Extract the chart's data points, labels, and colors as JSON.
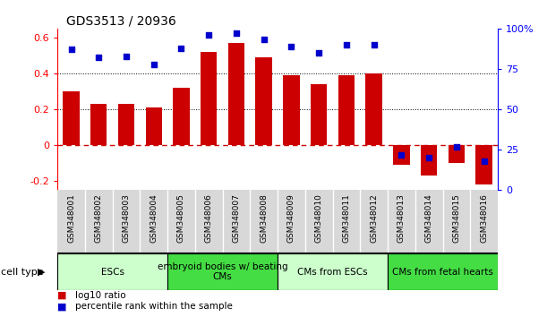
{
  "title": "GDS3513 / 20936",
  "samples": [
    "GSM348001",
    "GSM348002",
    "GSM348003",
    "GSM348004",
    "GSM348005",
    "GSM348006",
    "GSM348007",
    "GSM348008",
    "GSM348009",
    "GSM348010",
    "GSM348011",
    "GSM348012",
    "GSM348013",
    "GSM348014",
    "GSM348015",
    "GSM348016"
  ],
  "log10_ratio": [
    0.3,
    0.23,
    0.23,
    0.21,
    0.32,
    0.52,
    0.57,
    0.49,
    0.39,
    0.34,
    0.39,
    0.4,
    -0.11,
    -0.17,
    -0.1,
    -0.22
  ],
  "percentile_rank": [
    87,
    82,
    83,
    78,
    88,
    96,
    97,
    93,
    89,
    85,
    90,
    90,
    22,
    20,
    27,
    18
  ],
  "ylim_left": [
    -0.25,
    0.65
  ],
  "ylim_right": [
    0,
    100
  ],
  "bar_color": "#cc0000",
  "dot_color": "#0000cc",
  "zero_line_color": "#cc0000",
  "cell_types": [
    {
      "label": "ESCs",
      "start": 0,
      "end": 4,
      "color": "#ccffcc"
    },
    {
      "label": "embryoid bodies w/ beating\nCMs",
      "start": 4,
      "end": 8,
      "color": "#44dd44"
    },
    {
      "label": "CMs from ESCs",
      "start": 8,
      "end": 12,
      "color": "#ccffcc"
    },
    {
      "label": "CMs from fetal hearts",
      "start": 12,
      "end": 16,
      "color": "#44dd44"
    }
  ],
  "left_yticks": [
    -0.2,
    0.0,
    0.2,
    0.4,
    0.6
  ],
  "left_yticklabels": [
    "-0.2",
    "0",
    "0.2",
    "0.4",
    "0.6"
  ],
  "right_yticks": [
    0,
    25,
    50,
    75,
    100
  ],
  "right_yticklabels": [
    "0",
    "25",
    "50",
    "75",
    "100%"
  ],
  "legend_bar_label": "log10 ratio",
  "legend_dot_label": "percentile rank within the sample",
  "cell_type_label": "cell type"
}
